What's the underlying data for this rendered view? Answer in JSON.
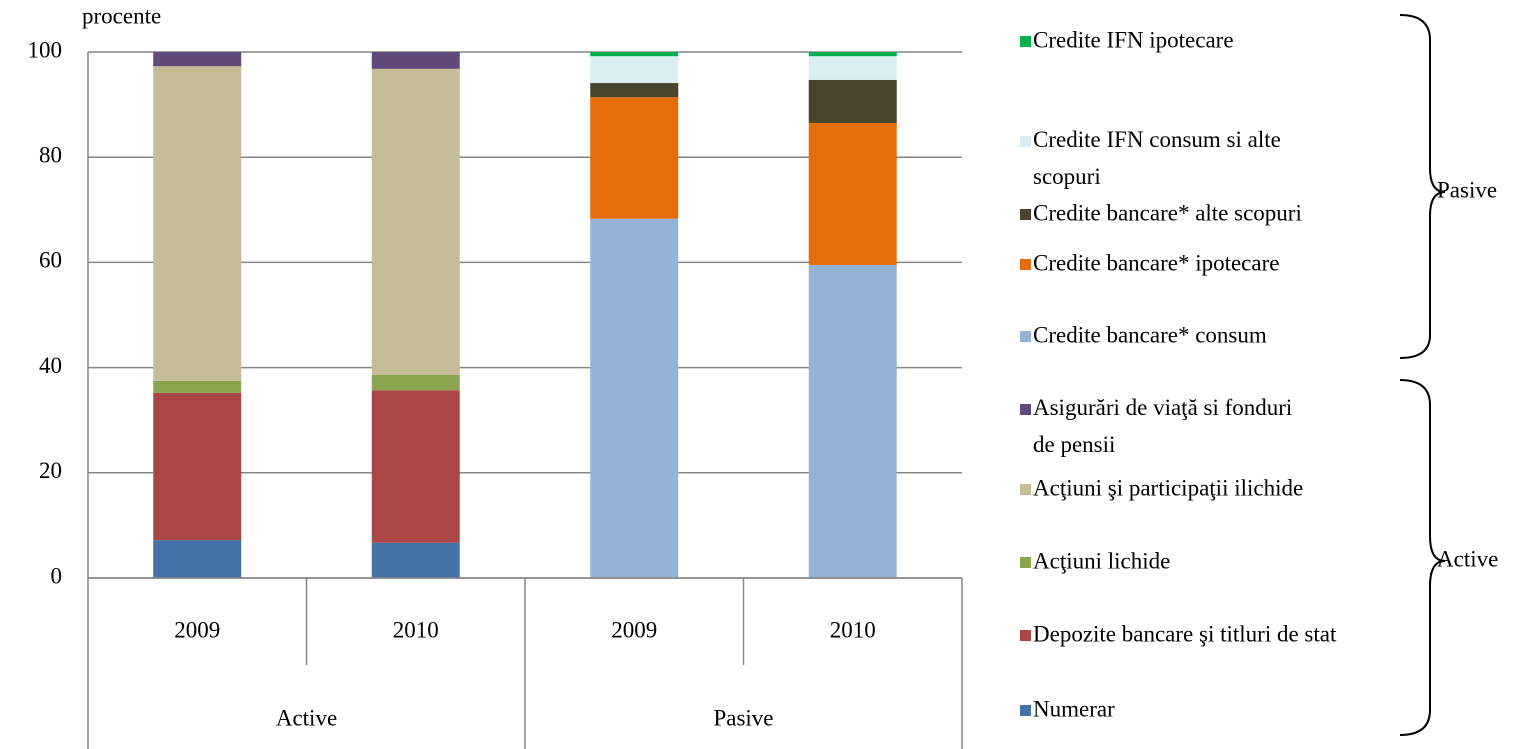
{
  "chart_data": {
    "type": "stacked_bar",
    "y_label": "procente",
    "categories": [
      "2009",
      "2010",
      "2009",
      "2010"
    ],
    "groups": [
      "Active",
      "Pasive"
    ],
    "ylim": [
      0,
      100
    ],
    "yticks": [
      0,
      20,
      40,
      60,
      80,
      100
    ],
    "grid": true,
    "series": [
      {
        "name": "Numerar",
        "color": "#4572a7",
        "values": [
          7.2,
          6.7,
          null,
          null
        ]
      },
      {
        "name": "Depozite bancare şi titluri de stat",
        "color": "#aa4643",
        "values": [
          28.0,
          29.0,
          null,
          null
        ]
      },
      {
        "name": "Acţiuni lichide",
        "color": "#89a54e",
        "values": [
          2.3,
          2.9,
          null,
          null
        ]
      },
      {
        "name": "Acţiuni şi participaţii ilichide",
        "color": "#c4bd97",
        "values": [
          59.8,
          58.2,
          null,
          null
        ]
      },
      {
        "name": "Asigurări de viaţă si fonduri de pensii",
        "color": "#604a7b",
        "values": [
          2.7,
          3.2,
          null,
          null
        ]
      },
      {
        "name": "Credite bancare* consum",
        "color": "#95b3d7",
        "values": [
          null,
          null,
          68.3,
          59.5
        ]
      },
      {
        "name": "Credite bancare* ipotecare",
        "color": "#e46c0a",
        "values": [
          null,
          null,
          23.1,
          27.0
        ]
      },
      {
        "name": "Credite bancare* alte scopuri",
        "color": "#4a452a",
        "values": [
          null,
          null,
          2.7,
          8.2
        ]
      },
      {
        "name": "Credite IFN consum si alte scopuri",
        "color": "#dbeef4",
        "values": [
          null,
          null,
          5.1,
          4.5
        ]
      },
      {
        "name": "Credite IFN ipotecare",
        "color": "#00b050",
        "values": [
          null,
          null,
          0.8,
          0.8
        ]
      }
    ]
  }
}
